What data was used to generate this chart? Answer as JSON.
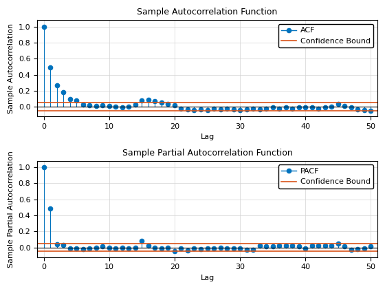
{
  "acf_values": [
    1.0,
    0.49,
    0.27,
    0.18,
    0.1,
    0.08,
    0.03,
    0.02,
    0.01,
    0.02,
    0.01,
    0.0,
    -0.01,
    0.0,
    0.03,
    0.08,
    0.09,
    0.07,
    0.05,
    0.04,
    0.02,
    -0.02,
    -0.03,
    -0.04,
    -0.03,
    -0.04,
    -0.02,
    -0.03,
    -0.02,
    -0.03,
    -0.04,
    -0.03,
    -0.02,
    -0.03,
    -0.02,
    -0.01,
    -0.02,
    -0.01,
    -0.02,
    -0.01,
    -0.01,
    -0.01,
    -0.02,
    -0.01,
    0.0,
    0.04,
    0.01,
    -0.01,
    -0.03,
    -0.04,
    -0.05
  ],
  "pacf_values": [
    1.0,
    0.49,
    0.04,
    0.03,
    -0.01,
    -0.01,
    -0.02,
    -0.01,
    0.0,
    0.01,
    0.0,
    -0.01,
    0.0,
    -0.01,
    0.0,
    0.08,
    0.02,
    0.0,
    -0.01,
    0.0,
    -0.05,
    -0.01,
    -0.04,
    -0.01,
    -0.02,
    -0.01,
    -0.01,
    0.0,
    -0.01,
    -0.01,
    -0.01,
    -0.03,
    -0.03,
    0.02,
    0.01,
    0.01,
    0.02,
    0.02,
    0.02,
    0.01,
    -0.01,
    0.02,
    0.02,
    0.02,
    0.02,
    0.05,
    0.01,
    -0.03,
    -0.02,
    -0.01,
    0.01
  ],
  "confidence_bound": 0.05,
  "title_acf": "Sample Autocorrelation Function",
  "title_pacf": "Sample Partial Autocorrelation Function",
  "xlabel": "Lag",
  "ylabel_acf": "Sample Autocorrelation",
  "ylabel_pacf": "Sample Partial Autocorrelation",
  "line_color": "#0072BD",
  "conf_color": "#D95319",
  "xlim": [
    -1,
    51
  ],
  "ylim_acf": [
    -0.12,
    1.08
  ],
  "ylim_pacf": [
    -0.12,
    1.08
  ],
  "xticks": [
    0,
    10,
    20,
    30,
    40,
    50
  ],
  "yticks": [
    0.0,
    0.2,
    0.4,
    0.6,
    0.8,
    1.0
  ],
  "legend_acf": "ACF",
  "legend_pacf": "PACF",
  "legend_conf": "Confidence Bound",
  "title_fontsize": 9,
  "label_fontsize": 8,
  "tick_fontsize": 8,
  "legend_fontsize": 8
}
